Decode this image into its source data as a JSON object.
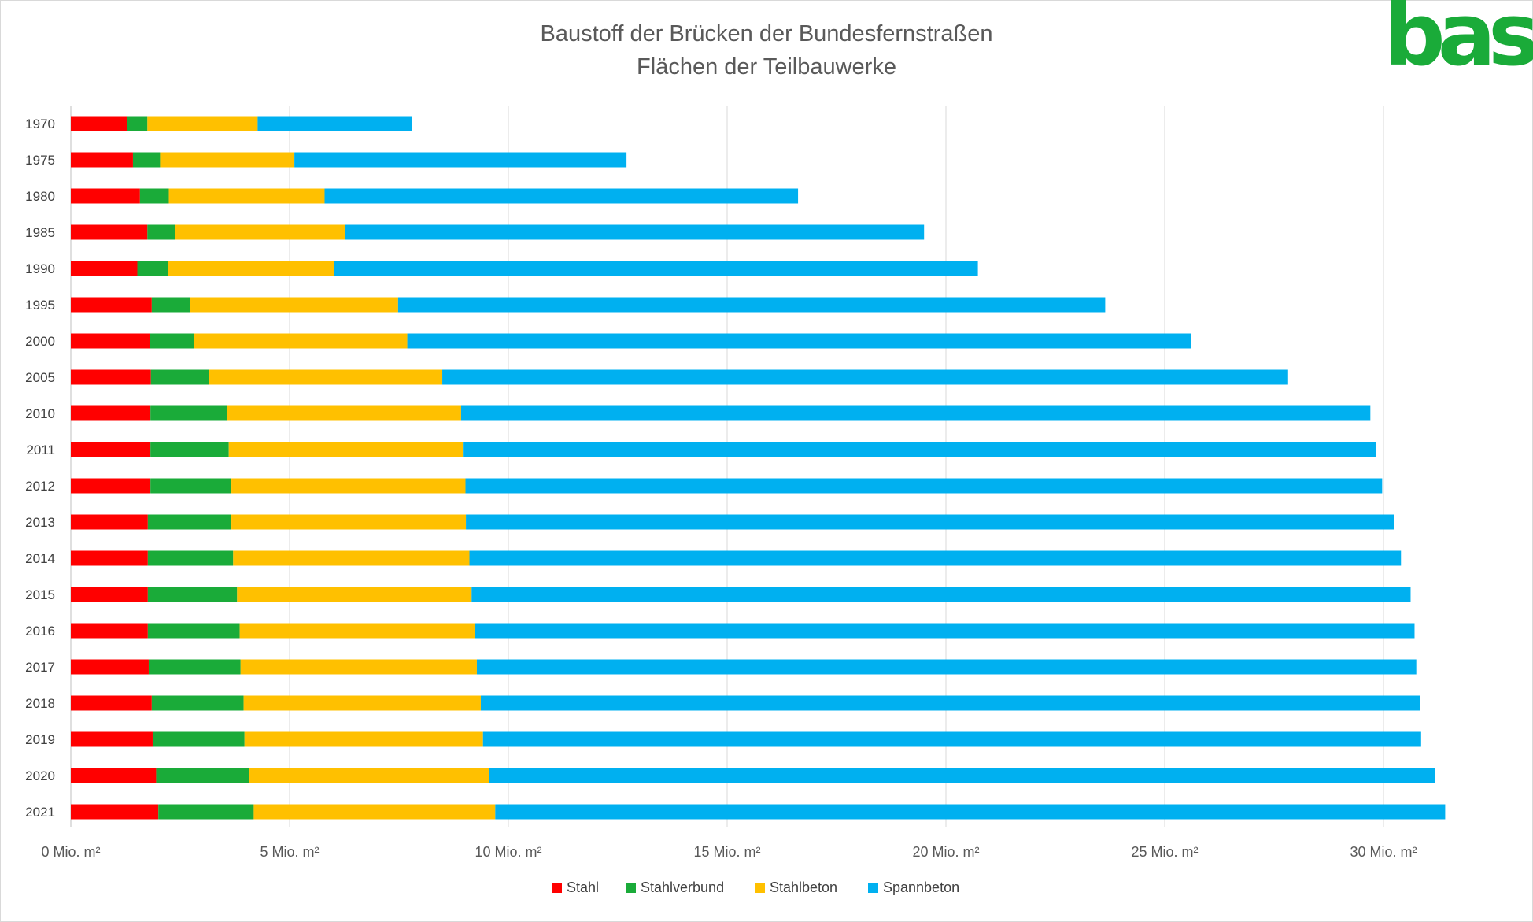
{
  "logo": {
    "text": "bast",
    "color": "#1aab39"
  },
  "chart_data": {
    "type": "bar",
    "orientation": "horizontal",
    "stacked": true,
    "title": "Baustoff der Brücken der Bundesfernstraßen",
    "subtitle": "Flächen der Teilbauwerke",
    "categories": [
      "1970",
      "1975",
      "1980",
      "1985",
      "1990",
      "1995",
      "2000",
      "2005",
      "2010",
      "2011",
      "2012",
      "2013",
      "2014",
      "2015",
      "2016",
      "2017",
      "2018",
      "2019",
      "2020",
      "2021"
    ],
    "series": [
      {
        "name": "Stahl",
        "color": "#ff0000",
        "values": [
          1.28,
          1.42,
          1.58,
          1.75,
          1.52,
          1.85,
          1.8,
          1.83,
          1.82,
          1.82,
          1.82,
          1.76,
          1.76,
          1.76,
          1.76,
          1.78,
          1.85,
          1.87,
          1.95,
          2.0
        ]
      },
      {
        "name": "Stahlverbund",
        "color": "#1aab39",
        "values": [
          0.47,
          0.62,
          0.66,
          0.64,
          0.71,
          0.88,
          1.02,
          1.33,
          1.75,
          1.79,
          1.85,
          1.91,
          1.95,
          2.04,
          2.1,
          2.1,
          2.1,
          2.1,
          2.13,
          2.18
        ]
      },
      {
        "name": "Stahlbeton",
        "color": "#ffc000",
        "values": [
          2.52,
          3.07,
          3.56,
          3.88,
          3.78,
          4.75,
          4.87,
          5.33,
          5.35,
          5.35,
          5.35,
          5.36,
          5.4,
          5.36,
          5.38,
          5.4,
          5.42,
          5.45,
          5.48,
          5.52
        ]
      },
      {
        "name": "Spannbeton",
        "color": "#00b0f0",
        "values": [
          3.53,
          7.59,
          10.82,
          13.23,
          14.72,
          16.16,
          17.92,
          19.33,
          20.78,
          20.86,
          20.95,
          21.21,
          21.29,
          21.46,
          21.47,
          21.47,
          21.46,
          21.44,
          21.61,
          21.71
        ]
      }
    ],
    "x_tick_labels": [
      "0 Mio. m²",
      "5 Mio. m²",
      "10 Mio. m²",
      "15 Mio. m²",
      "20 Mio. m²",
      "25 Mio. m²",
      "30 Mio. m²"
    ],
    "x_ticks": [
      0,
      5,
      10,
      15,
      20,
      25,
      30
    ],
    "xlim": [
      0,
      32.5
    ],
    "xlabel": "",
    "ylabel": "",
    "grid": {
      "vertical": true,
      "color": "#d9d9d9"
    },
    "legend": {
      "position": "bottom"
    }
  }
}
